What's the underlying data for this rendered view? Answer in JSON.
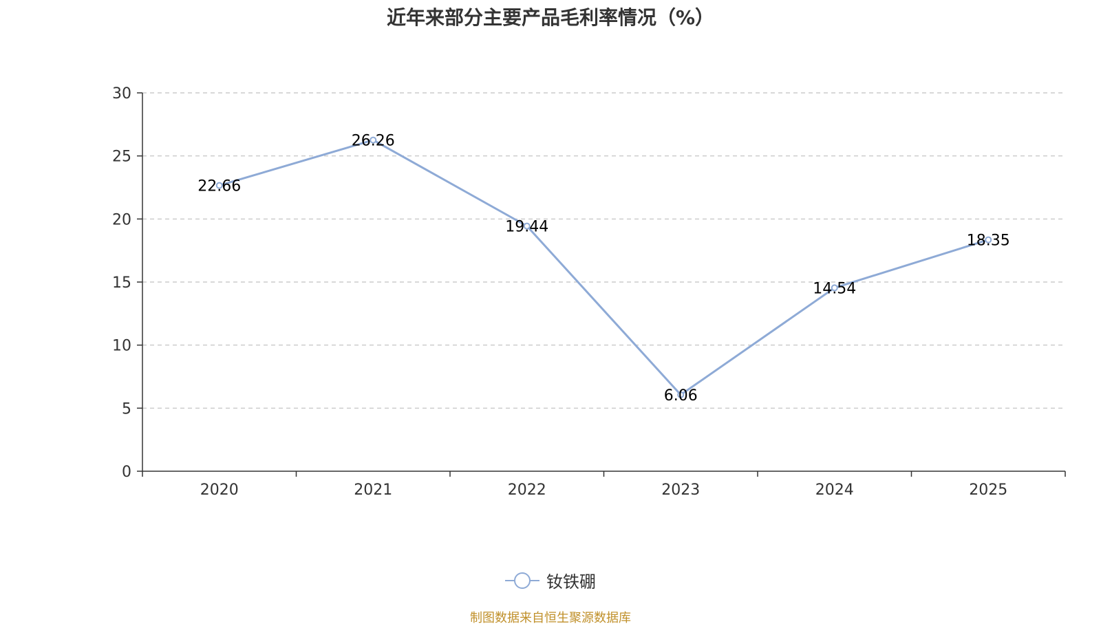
{
  "title": "近年来部分主要产品毛利率情况（%）",
  "source": "制图数据来自恒生聚源数据库",
  "colors": {
    "series": "#8eaad6",
    "source": "#c0902a",
    "grid": "#cccccc",
    "axis": "#333333"
  },
  "chart_data": {
    "type": "line",
    "title": "近年来部分主要产品毛利率情况（%）",
    "xlabel": "",
    "ylabel": "",
    "categories": [
      "2020",
      "2021",
      "2022",
      "2023",
      "2024",
      "2025"
    ],
    "series": [
      {
        "name": "钕铁硼",
        "values": [
          22.66,
          26.26,
          19.44,
          6.06,
          14.54,
          18.35
        ],
        "labels": [
          "22.66",
          "26.26",
          "19.44",
          "6.06",
          "14.54",
          "18.35"
        ]
      }
    ],
    "ylim": [
      0,
      30
    ],
    "yticks": [
      0,
      5,
      10,
      15,
      20,
      25,
      30
    ],
    "grid": "horizontal dashed",
    "legend": "bottom-center"
  }
}
